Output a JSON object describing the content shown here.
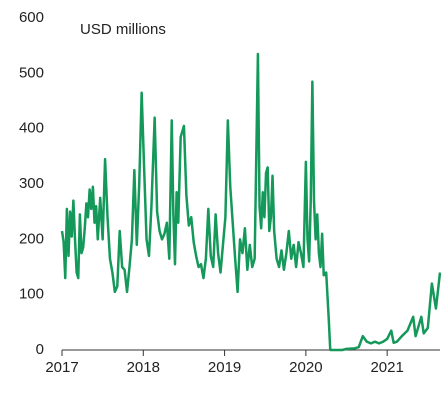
{
  "chart_data": {
    "type": "line",
    "annotation": "USD millions",
    "color": "#14995a",
    "xlim": [
      2017,
      2021.65
    ],
    "xticks": [
      2017,
      2018,
      2019,
      2020,
      2021
    ],
    "ylim": [
      0,
      600
    ],
    "yticks": [
      0,
      100,
      200,
      300,
      400,
      500,
      600
    ],
    "x": [
      2017.0,
      2017.02,
      2017.04,
      2017.06,
      2017.08,
      2017.1,
      2017.12,
      2017.14,
      2017.16,
      2017.18,
      2017.2,
      2017.22,
      2017.24,
      2017.26,
      2017.28,
      2017.3,
      2017.32,
      2017.34,
      2017.36,
      2017.38,
      2017.4,
      2017.42,
      2017.44,
      2017.47,
      2017.5,
      2017.53,
      2017.56,
      2017.59,
      2017.62,
      2017.65,
      2017.68,
      2017.71,
      2017.74,
      2017.77,
      2017.8,
      2017.83,
      2017.86,
      2017.89,
      2017.92,
      2017.95,
      2017.98,
      2018.01,
      2018.04,
      2018.07,
      2018.1,
      2018.14,
      2018.17,
      2018.2,
      2018.23,
      2018.26,
      2018.29,
      2018.32,
      2018.35,
      2018.37,
      2018.39,
      2018.41,
      2018.43,
      2018.46,
      2018.5,
      2018.53,
      2018.56,
      2018.59,
      2018.62,
      2018.65,
      2018.68,
      2018.71,
      2018.74,
      2018.77,
      2018.8,
      2018.83,
      2018.86,
      2018.89,
      2018.92,
      2018.95,
      2018.98,
      2019.01,
      2019.04,
      2019.07,
      2019.1,
      2019.13,
      2019.16,
      2019.19,
      2019.22,
      2019.25,
      2019.28,
      2019.31,
      2019.34,
      2019.37,
      2019.39,
      2019.41,
      2019.43,
      2019.45,
      2019.47,
      2019.49,
      2019.51,
      2019.53,
      2019.55,
      2019.57,
      2019.59,
      2019.61,
      2019.64,
      2019.67,
      2019.7,
      2019.73,
      2019.76,
      2019.79,
      2019.82,
      2019.85,
      2019.88,
      2019.91,
      2019.94,
      2019.97,
      2020.0,
      2020.02,
      2020.04,
      2020.06,
      2020.08,
      2020.1,
      2020.12,
      2020.14,
      2020.16,
      2020.18,
      2020.2,
      2020.22,
      2020.25,
      2020.28,
      2020.3,
      2020.45,
      2020.5,
      2020.6,
      2020.65,
      2020.7,
      2020.75,
      2020.8,
      2020.85,
      2020.9,
      2020.95,
      2021.0,
      2021.05,
      2021.08,
      2021.12,
      2021.18,
      2021.25,
      2021.32,
      2021.35,
      2021.42,
      2021.45,
      2021.5,
      2021.55,
      2021.6,
      2021.65
    ],
    "values": [
      215,
      195,
      130,
      255,
      170,
      250,
      205,
      270,
      200,
      140,
      130,
      245,
      175,
      185,
      220,
      265,
      240,
      290,
      255,
      295,
      230,
      260,
      200,
      275,
      200,
      345,
      240,
      165,
      140,
      105,
      115,
      215,
      150,
      145,
      105,
      150,
      200,
      325,
      190,
      300,
      465,
      330,
      200,
      170,
      260,
      420,
      250,
      215,
      200,
      210,
      230,
      165,
      415,
      245,
      155,
      285,
      230,
      385,
      405,
      280,
      225,
      240,
      195,
      170,
      150,
      155,
      130,
      165,
      255,
      170,
      150,
      245,
      175,
      140,
      190,
      240,
      415,
      295,
      230,
      165,
      105,
      200,
      175,
      220,
      145,
      190,
      150,
      165,
      350,
      535,
      260,
      220,
      285,
      240,
      320,
      330,
      215,
      240,
      315,
      215,
      165,
      150,
      180,
      145,
      175,
      215,
      165,
      190,
      150,
      195,
      175,
      150,
      340,
      200,
      160,
      270,
      485,
      270,
      200,
      245,
      175,
      150,
      210,
      135,
      140,
      60,
      0,
      0,
      2,
      3,
      5,
      25,
      15,
      12,
      15,
      12,
      15,
      20,
      35,
      13,
      15,
      25,
      35,
      60,
      25,
      60,
      30,
      40,
      120,
      75,
      140
    ]
  }
}
